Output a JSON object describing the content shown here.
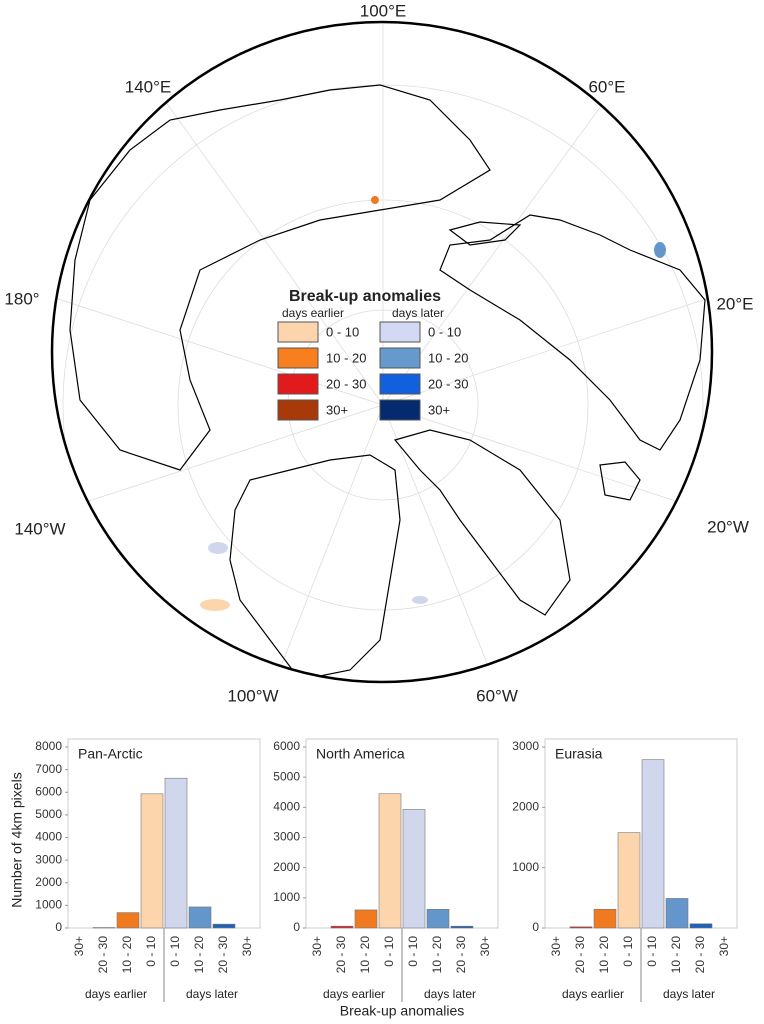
{
  "map": {
    "lon_labels": [
      "100°E",
      "60°E",
      "20°E",
      "20°W",
      "60°W",
      "100°W",
      "140°W",
      "180°",
      "140°E"
    ],
    "legend": {
      "title": "Break-up anomalies",
      "earlier": "days earlier",
      "later": "days later",
      "earlier_items": [
        "0 - 10",
        "10 - 20",
        "20 - 30",
        "30+"
      ],
      "later_items": [
        "0 - 10",
        "10 - 20",
        "20 - 30",
        "30+"
      ],
      "earlier_colors": [
        "#fdd5ad",
        "#f77f1e",
        "#e31a1c",
        "#a83a0a"
      ],
      "later_colors": [
        "#d4d9f3",
        "#6699cc",
        "#1060e0",
        "#062a70"
      ]
    }
  },
  "figure": {
    "ylabel": "Number of 4km pixels",
    "xlabel": "Break-up anomalies",
    "group_labels": [
      "days earlier",
      "days later"
    ]
  },
  "chart_data": [
    {
      "type": "bar",
      "title": "Pan-Arctic",
      "categories": [
        "30+",
        "20 - 30",
        "10 - 20",
        "0 - 10",
        "0 - 10",
        "10 - 20",
        "20 - 30",
        "30+"
      ],
      "values": [
        0,
        20,
        680,
        5930,
        6620,
        930,
        170,
        0
      ],
      "colors": [
        "#a83a0a",
        "#e31a1c",
        "#f07a20",
        "#fdd5ad",
        "#d0d6ec",
        "#6496cc",
        "#1f60b8",
        "#062a70"
      ],
      "ylim": [
        0,
        8000
      ],
      "yticks": [
        0,
        1000,
        2000,
        3000,
        4000,
        5000,
        6000,
        7000,
        8000
      ]
    },
    {
      "type": "bar",
      "title": "North America",
      "categories": [
        "30+",
        "20 - 30",
        "10 - 20",
        "0 - 10",
        "0 - 10",
        "10 - 20",
        "20 - 30",
        "30+"
      ],
      "values": [
        0,
        60,
        600,
        4450,
        3930,
        620,
        60,
        0
      ],
      "colors": [
        "#a83a0a",
        "#e31a1c",
        "#f07a20",
        "#fdd5ad",
        "#d0d6ec",
        "#6496cc",
        "#1f60b8",
        "#062a70"
      ],
      "ylim": [
        0,
        6000
      ],
      "yticks": [
        0,
        1000,
        2000,
        3000,
        4000,
        5000,
        6000
      ]
    },
    {
      "type": "bar",
      "title": "Eurasia",
      "categories": [
        "30+",
        "20 - 30",
        "10 - 20",
        "0 - 10",
        "0 - 10",
        "10 - 20",
        "20 - 30",
        "30+"
      ],
      "values": [
        0,
        20,
        310,
        1580,
        2790,
        490,
        70,
        0
      ],
      "colors": [
        "#a83a0a",
        "#e31a1c",
        "#f07a20",
        "#fdd5ad",
        "#d0d6ec",
        "#6496cc",
        "#1f60b8",
        "#062a70"
      ],
      "ylim": [
        0,
        3000
      ],
      "yticks": [
        0,
        1000,
        2000,
        3000
      ]
    }
  ]
}
